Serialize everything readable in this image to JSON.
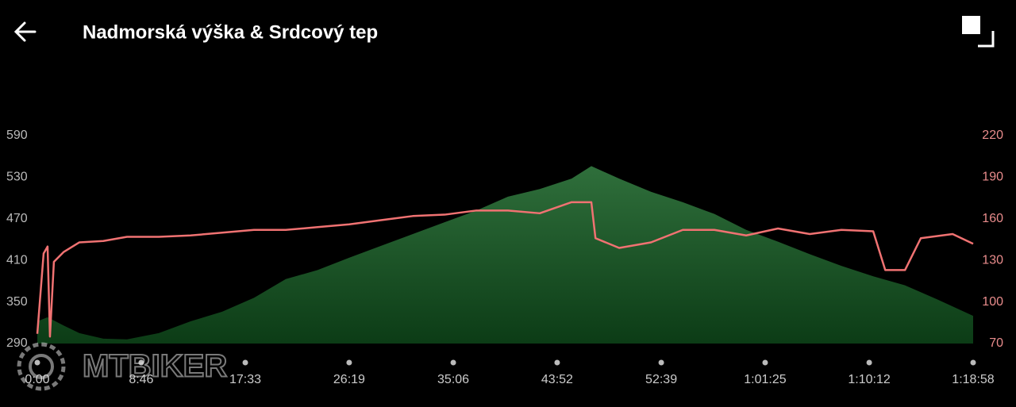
{
  "header": {
    "title": "Nadmorská výška & Srdcový tep"
  },
  "watermark": "MTBIKER",
  "chart_data": {
    "type": "area-line",
    "xlim": [
      0,
      4738
    ],
    "xticks": [
      {
        "value": 0,
        "label": "0:00"
      },
      {
        "value": 526,
        "label": "8:46"
      },
      {
        "value": 1053,
        "label": "17:33"
      },
      {
        "value": 1579,
        "label": "26:19"
      },
      {
        "value": 2106,
        "label": "35:06"
      },
      {
        "value": 2632,
        "label": "43:52"
      },
      {
        "value": 3159,
        "label": "52:39"
      },
      {
        "value": 3685,
        "label": "1:01:25"
      },
      {
        "value": 4212,
        "label": "1:10:12"
      },
      {
        "value": 4738,
        "label": "1:18:58"
      }
    ],
    "ylim": [
      290,
      590
    ],
    "yticks": [
      290,
      350,
      410,
      470,
      530,
      590
    ],
    "y2lim": [
      70,
      220
    ],
    "y2ticks": [
      70,
      100,
      130,
      160,
      190,
      220
    ],
    "series": [
      {
        "kind": "area",
        "color": "#2e6b38",
        "x": [
          0,
          52,
          133,
          213,
          334,
          454,
          615,
          776,
          936,
          1097,
          1258,
          1419,
          1580,
          1740,
          1901,
          2062,
          2223,
          2383,
          2544,
          2705,
          2805,
          2946,
          3107,
          3268,
          3428,
          3589,
          3750,
          3911,
          4071,
          4232,
          4393,
          4554,
          4738
        ],
        "values": [
          322,
          328,
          316,
          305,
          297,
          296,
          305,
          322,
          336,
          356,
          383,
          396,
          414,
          431,
          448,
          465,
          482,
          502,
          513,
          528,
          546,
          528,
          509,
          494,
          477,
          454,
          437,
          419,
          402,
          387,
          374,
          354,
          330
        ]
      },
      {
        "kind": "line",
        "axis": "y2",
        "color": "#f07272",
        "x": [
          0,
          32,
          52,
          64,
          84,
          133,
          213,
          334,
          454,
          615,
          776,
          936,
          1097,
          1258,
          1419,
          1580,
          1740,
          1901,
          2062,
          2223,
          2383,
          2544,
          2705,
          2805,
          2826,
          2946,
          3107,
          3268,
          3428,
          3589,
          3750,
          3911,
          4071,
          4232,
          4293,
          4393,
          4473,
          4634,
          4738
        ],
        "values": [
          77,
          135,
          140,
          75,
          129,
          136,
          143,
          144,
          147,
          147,
          148,
          150,
          152,
          152,
          154,
          156,
          159,
          162,
          163,
          166,
          166,
          164,
          172,
          172,
          146,
          139,
          143,
          152,
          152,
          148,
          153,
          149,
          152,
          151,
          123,
          123,
          146,
          149,
          142
        ]
      }
    ]
  }
}
